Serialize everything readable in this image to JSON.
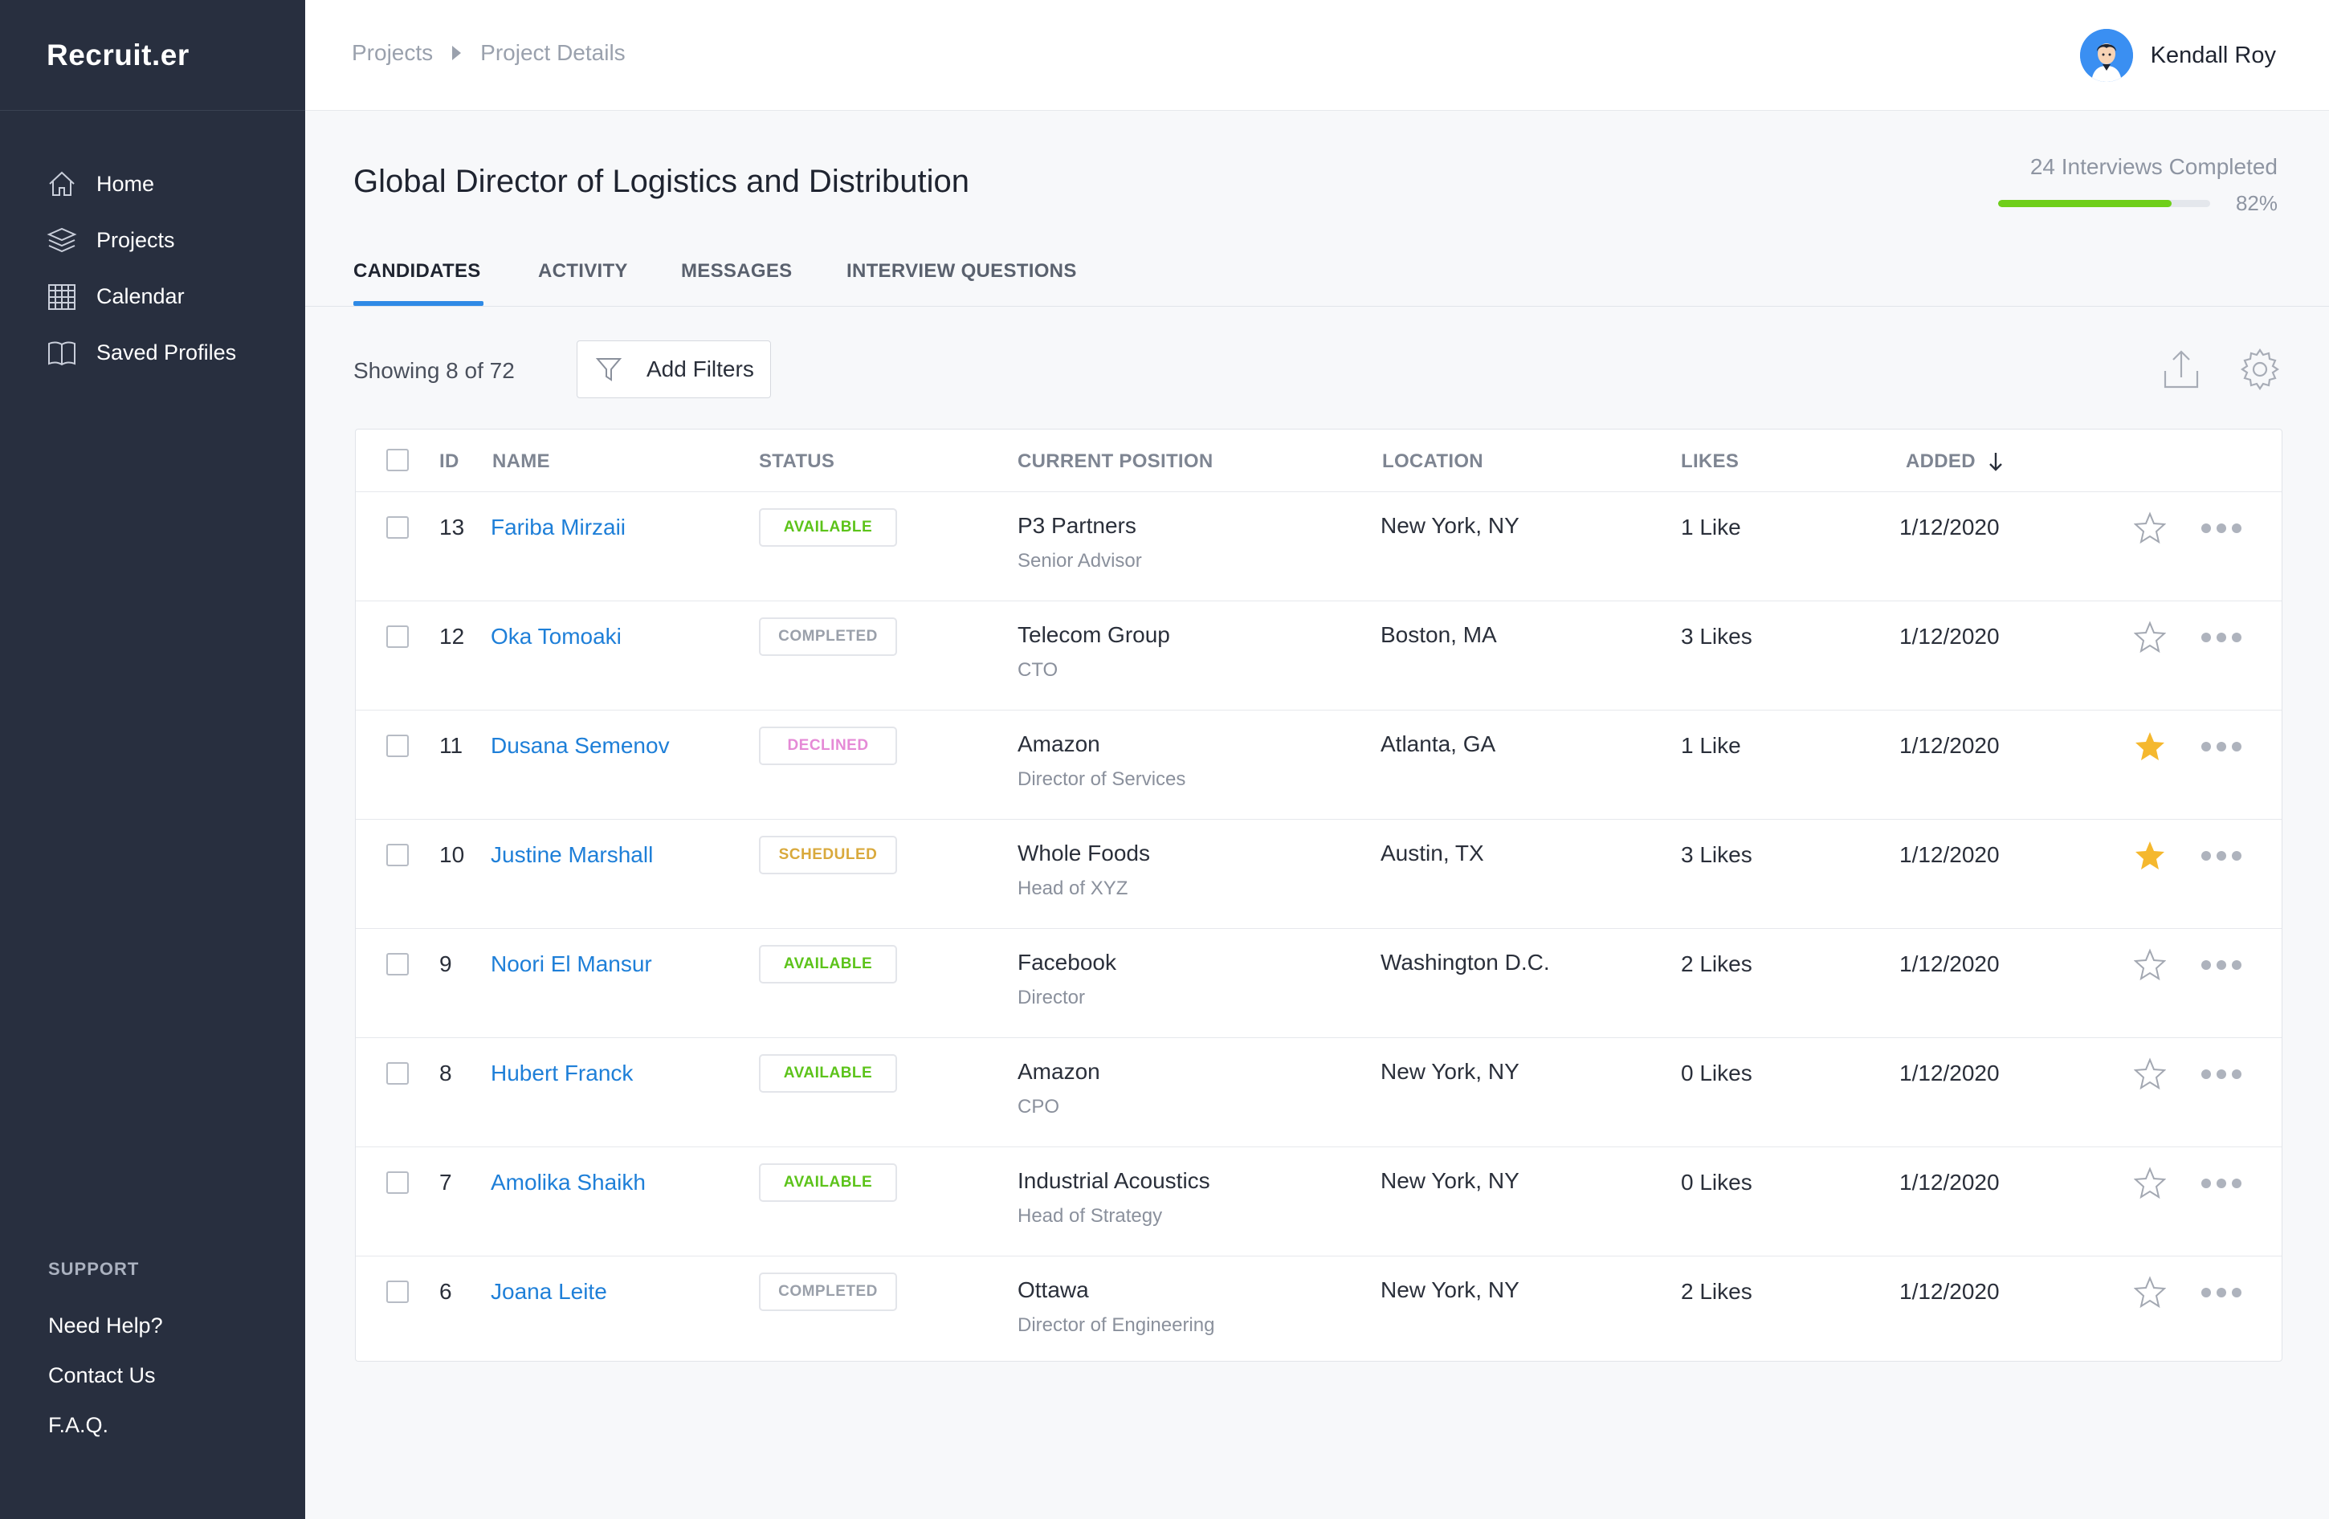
{
  "app": {
    "brand": "Recruit.er"
  },
  "sidebar": {
    "items": [
      {
        "label": "Home",
        "icon": "home-icon"
      },
      {
        "label": "Projects",
        "icon": "layers-icon"
      },
      {
        "label": "Calendar",
        "icon": "calendar-icon"
      },
      {
        "label": "Saved Profiles",
        "icon": "book-icon"
      }
    ],
    "support": {
      "title": "SUPPORT",
      "links": [
        "Need Help?",
        "Contact Us",
        "F.A.Q."
      ]
    }
  },
  "topbar": {
    "breadcrumb": [
      "Projects",
      "Project Details"
    ],
    "user": {
      "name": "Kendall Roy"
    }
  },
  "project": {
    "title": "Global Director of Logistics and Distribution",
    "interviews_label": "24 Interviews Completed",
    "progress_percent": 82,
    "progress_label": "82%"
  },
  "tabs": [
    "CANDIDATES",
    "ACTIVITY",
    "MESSAGES",
    "INTERVIEW QUESTIONS"
  ],
  "active_tab": "CANDIDATES",
  "toolbar": {
    "showing": "Showing 8 of 72",
    "filter_label": "Add Filters"
  },
  "table": {
    "columns": [
      "ID",
      "NAME",
      "STATUS",
      "CURRENT POSITION",
      "LOCATION",
      "LIKES",
      "ADDED"
    ],
    "sort_column": "ADDED",
    "sort_direction": "descending",
    "rows": [
      {
        "id": "13",
        "name": "Fariba Mirzaii",
        "status": "AVAILABLE",
        "company": "P3 Partners",
        "title": "Senior Advisor",
        "location": "New York, NY",
        "likes": "1 Like",
        "added": "1/12/2020",
        "starred": false
      },
      {
        "id": "12",
        "name": "Oka Tomoaki",
        "status": "COMPLETED",
        "company": "Telecom Group",
        "title": "CTO",
        "location": "Boston, MA",
        "likes": "3 Likes",
        "added": "1/12/2020",
        "starred": false
      },
      {
        "id": "11",
        "name": "Dusana Semenov",
        "status": "DECLINED",
        "company": "Amazon",
        "title": "Director of Services",
        "location": "Atlanta, GA",
        "likes": "1 Like",
        "added": "1/12/2020",
        "starred": true
      },
      {
        "id": "10",
        "name": "Justine Marshall",
        "status": "SCHEDULED",
        "company": "Whole Foods",
        "title": "Head of XYZ",
        "location": "Austin, TX",
        "likes": "3 Likes",
        "added": "1/12/2020",
        "starred": true
      },
      {
        "id": "9",
        "name": "Noori El Mansur",
        "status": "AVAILABLE",
        "company": "Facebook",
        "title": "Director",
        "location": "Washington D.C.",
        "likes": "2 Likes",
        "added": "1/12/2020",
        "starred": false
      },
      {
        "id": "8",
        "name": "Hubert Franck",
        "status": "AVAILABLE",
        "company": "Amazon",
        "title": "CPO",
        "location": "New York, NY",
        "likes": "0 Likes",
        "added": "1/12/2020",
        "starred": false
      },
      {
        "id": "7",
        "name": "Amolika Shaikh",
        "status": "AVAILABLE",
        "company": "Industrial Acoustics",
        "title": "Head of Strategy",
        "location": "New York, NY",
        "likes": "0 Likes",
        "added": "1/12/2020",
        "starred": false
      },
      {
        "id": "6",
        "name": "Joana Leite",
        "status": "COMPLETED",
        "company": "Ottawa",
        "title": "Director of Engineering",
        "location": "New York, NY",
        "likes": "2 Likes",
        "added": "1/12/2020",
        "starred": false
      }
    ]
  },
  "colors": {
    "sidebar_bg": "#282f3f",
    "accent": "#2f8ae6",
    "link": "#1e7fd8",
    "progress": "#6fcf1a",
    "status_available": "#5cc31a",
    "status_completed": "#9aa0aa",
    "status_declined": "#e58ad6",
    "status_scheduled": "#d9a93c",
    "star_active": "#f5b82e"
  }
}
